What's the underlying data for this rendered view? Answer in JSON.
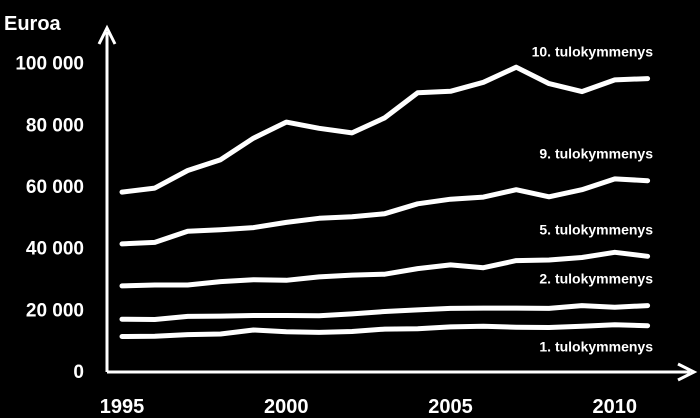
{
  "colors": {
    "background": "#000000",
    "foreground": "#ffffff"
  },
  "chart_data": {
    "type": "line",
    "ylabel": "Euroa",
    "xlabel": "",
    "xlim": [
      1995,
      2012
    ],
    "ylim": [
      0,
      100000
    ],
    "grid": false,
    "legend": "inline labels at right end of each line",
    "y_ticks": [
      {
        "value": 0,
        "label": "0"
      },
      {
        "value": 20000,
        "label": "20 000"
      },
      {
        "value": 40000,
        "label": "40 000"
      },
      {
        "value": 60000,
        "label": "60 000"
      },
      {
        "value": 80000,
        "label": "80 000"
      },
      {
        "value": 100000,
        "label": "100 000"
      }
    ],
    "x_ticks": [
      {
        "value": 1995,
        "label": "1995"
      },
      {
        "value": 2000,
        "label": "2000"
      },
      {
        "value": 2005,
        "label": "2005"
      },
      {
        "value": 2010,
        "label": "2010"
      }
    ],
    "x": [
      1995,
      1996,
      1997,
      1998,
      1999,
      2000,
      2001,
      2002,
      2003,
      2004,
      2005,
      2006,
      2007,
      2008,
      2009,
      2010,
      2011
    ],
    "series": [
      {
        "name": "10. tulokymmenys",
        "values": [
          58000,
          59300,
          65000,
          68500,
          75500,
          80700,
          78700,
          77200,
          82100,
          90200,
          90700,
          93600,
          98500,
          93200,
          90600,
          94400,
          94800
        ]
      },
      {
        "name": "9. tulokymmenys",
        "values": [
          41200,
          41700,
          45300,
          45800,
          46500,
          48200,
          49500,
          50000,
          51000,
          54200,
          55700,
          56400,
          58800,
          56500,
          58800,
          62300,
          61700
        ]
      },
      {
        "name": "5. tulokymmenys",
        "values": [
          27600,
          27900,
          27900,
          29000,
          29600,
          29400,
          30500,
          31100,
          31400,
          33200,
          34400,
          33500,
          35800,
          36000,
          36800,
          38500,
          37200
        ]
      },
      {
        "name": "2. tulokymmenys",
        "values": [
          16800,
          16700,
          17700,
          17800,
          18000,
          18000,
          17900,
          18500,
          19300,
          19800,
          20300,
          20400,
          20400,
          20300,
          21200,
          20700,
          21200
        ]
      },
      {
        "name": "1. tulokymmenys",
        "values": [
          11200,
          11300,
          11800,
          12000,
          13300,
          12700,
          12500,
          12800,
          13600,
          13700,
          14300,
          14500,
          14200,
          14100,
          14500,
          15000,
          14700
        ]
      }
    ]
  }
}
